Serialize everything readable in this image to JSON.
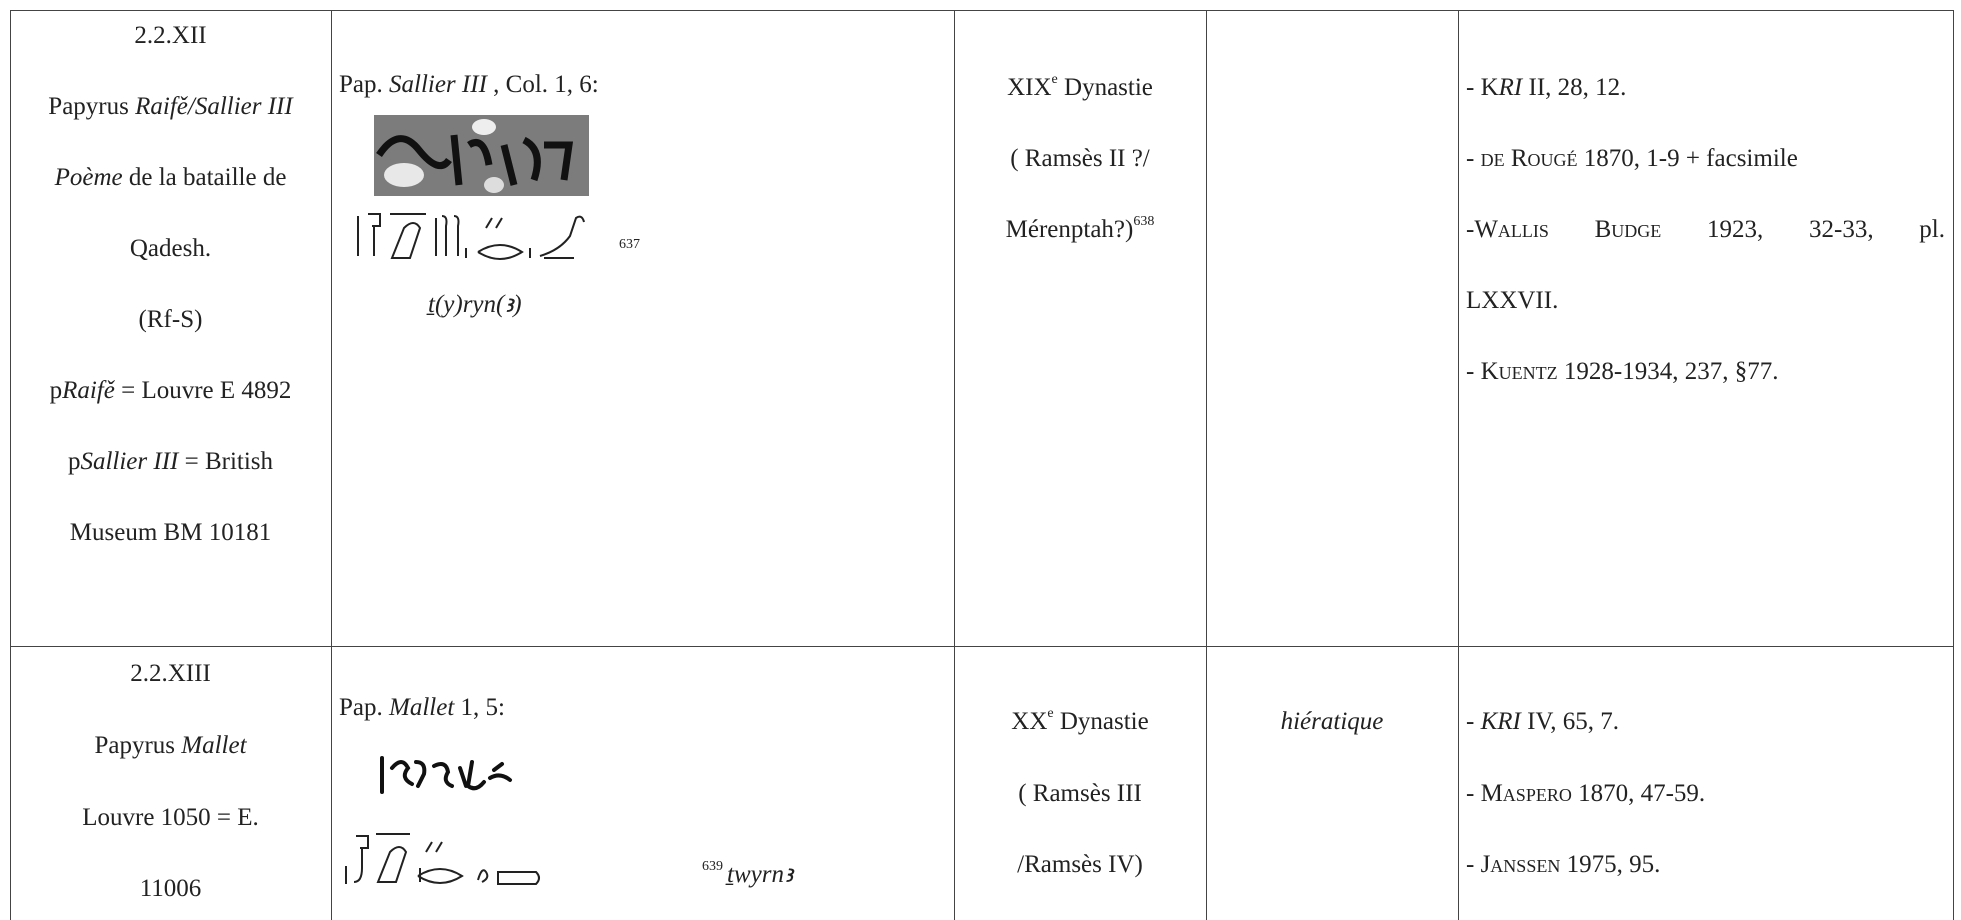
{
  "rows": [
    {
      "ref": {
        "lines": [
          [
            "2.2.XII"
          ],
          [
            "Papyrus ",
            "Raifě/Sallier III"
          ],
          [
            "Poème",
            " de la bataille de"
          ],
          [
            "Qadesh."
          ],
          [
            "(Rf-S)"
          ],
          [
            "p",
            "Raifě",
            " = Louvre E 4892"
          ],
          [
            "p",
            "Sallier III",
            " = British"
          ],
          [
            "Museum BM 10181"
          ]
        ]
      },
      "source": {
        "lines": [
          [
            "Pap. ",
            "Sallier III",
            " , Col. 1, 6:"
          ]
        ],
        "footnote": "637",
        "transliteration": "ṯ(y)ryn(ꜣ)"
      },
      "date": {
        "lines": [
          [
            "XIX",
            "e",
            " Dynastie"
          ],
          [
            "( Ramsès II ?/"
          ],
          [
            "Mérenptah?)",
            "638"
          ]
        ]
      },
      "bibliography": {
        "lines": [
          [
            "- K",
            "RI",
            " II, 28, 12."
          ],
          [
            "- ",
            "de Rougé",
            " 1870, 1-9 + facsimile"
          ],
          [
            "-",
            "Wallis Budge",
            " 1923, 32-33, pl."
          ],
          [
            "LXXVII."
          ],
          [
            "- ",
            "Kuentz",
            " 1928-1934, 237, §77."
          ]
        ]
      }
    },
    {
      "ref": {
        "lines": [
          [
            "2.2.XIII"
          ],
          [
            "Papyrus ",
            "Mallet"
          ],
          [
            "Louvre 1050 = E."
          ],
          [
            "11006"
          ]
        ]
      },
      "source": {
        "lines": [
          [
            "Pap. ",
            "Mallet",
            " 1, 5:"
          ]
        ],
        "footnote": "639",
        "transliteration": "ṯwyrnꜣ"
      },
      "date": {
        "lines": [
          [
            "XX",
            "e",
            " Dynastie"
          ],
          [
            "( Ramsès III"
          ],
          [
            "/Ramsès IV)"
          ]
        ]
      },
      "script": {
        "lines": [
          [
            "hiératique"
          ]
        ]
      },
      "bibliography": {
        "lines": [
          [
            "- ",
            "KRI",
            " IV, 65, 7."
          ],
          [
            "- ",
            "Maspero",
            " 1870, 47-59."
          ],
          [
            "- ",
            "Janssen",
            " 1975, 95."
          ]
        ]
      }
    }
  ]
}
